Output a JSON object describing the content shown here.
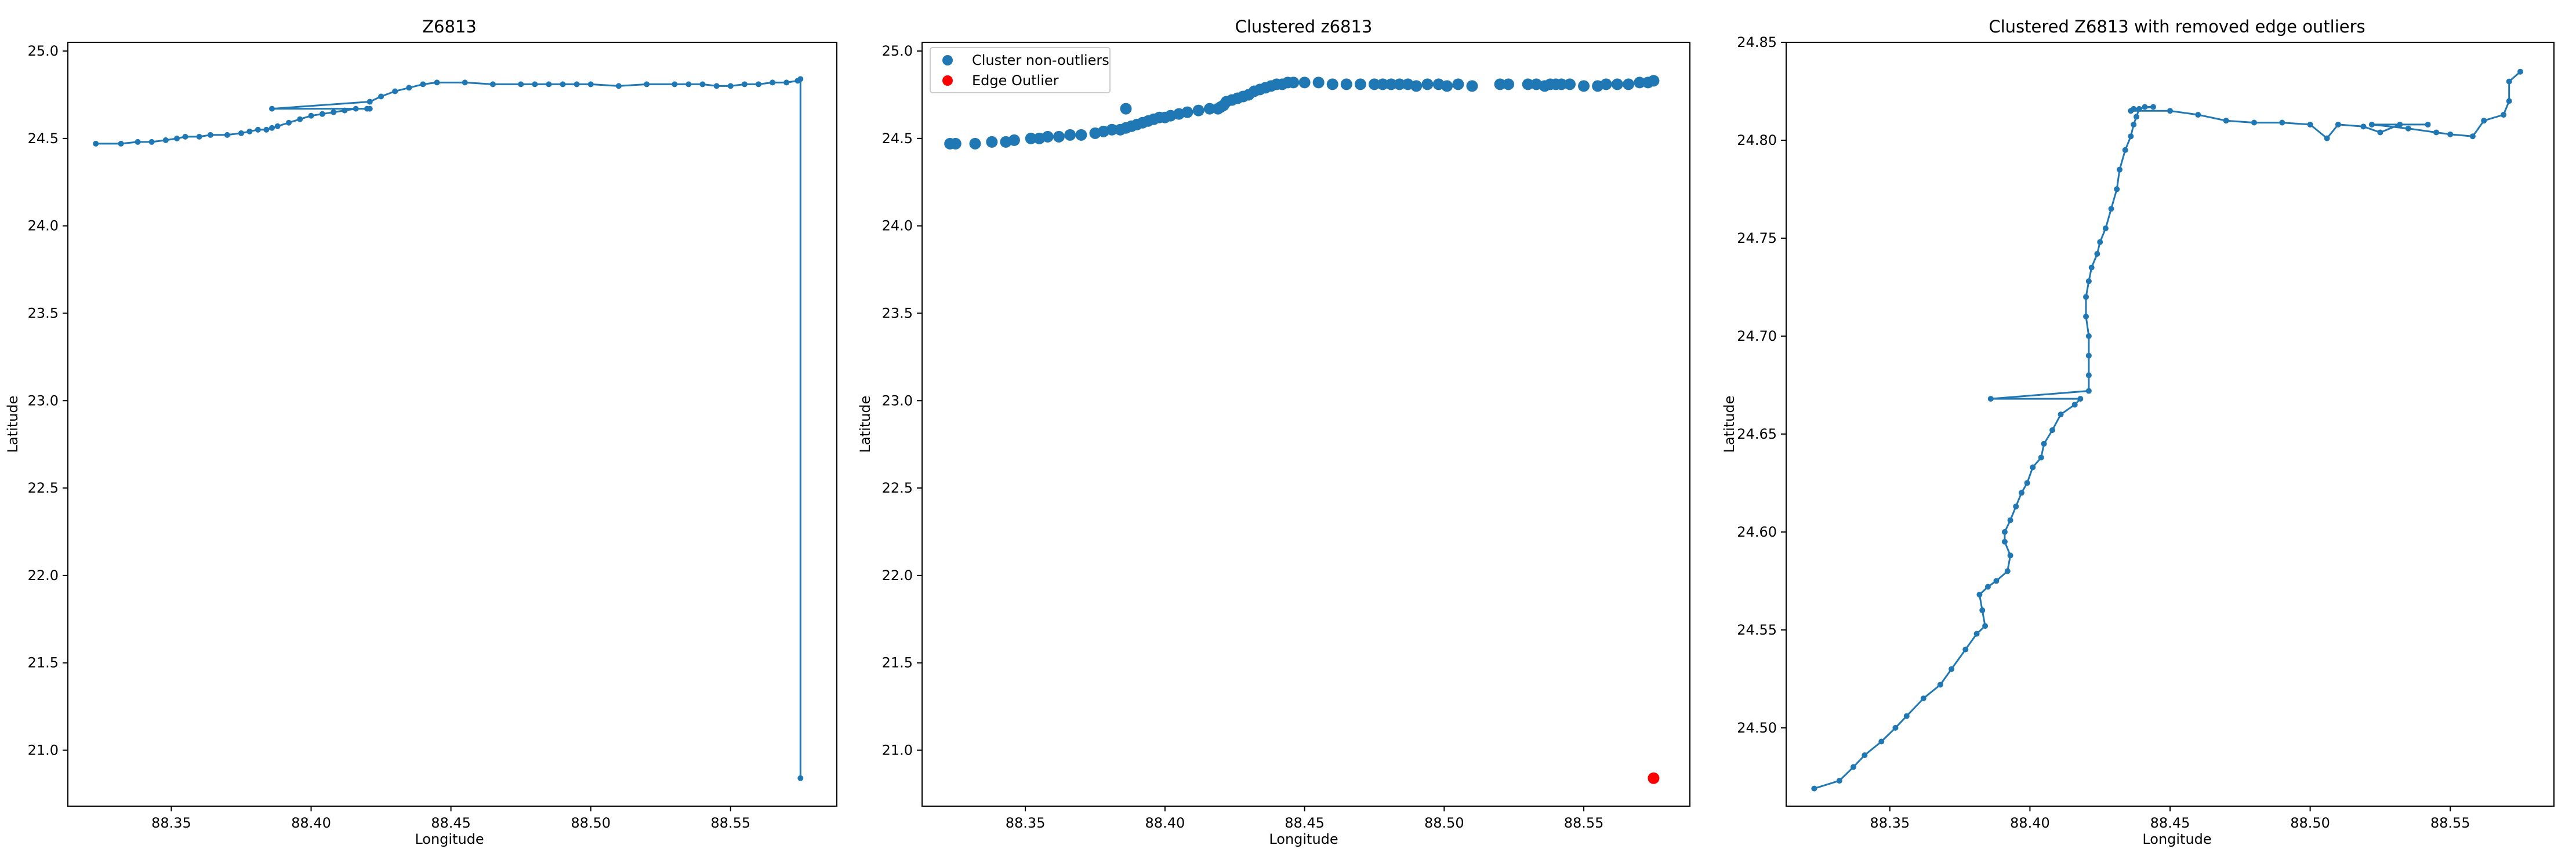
{
  "colors": {
    "series": "#1f77b4",
    "outlier": "#ff0000",
    "axis": "#000000",
    "legend_border": "#cccccc",
    "background": "#ffffff"
  },
  "chart_data": [
    {
      "type": "line",
      "title": "Z6813",
      "xlabel": "Longitude",
      "ylabel": "Latitude",
      "xlim": [
        88.313,
        88.588
      ],
      "ylim": [
        20.68,
        25.05
      ],
      "xticks": [
        "88.35",
        "88.40",
        "88.45",
        "88.50",
        "88.55"
      ],
      "yticks": [
        "21.0",
        "21.5",
        "22.0",
        "22.5",
        "23.0",
        "23.5",
        "24.0",
        "24.5",
        "25.0"
      ],
      "grid": false,
      "marker": "dot",
      "series": [
        {
          "x": [
            88.323,
            88.332,
            88.338,
            88.343,
            88.348,
            88.352,
            88.355,
            88.36,
            88.364,
            88.37,
            88.375,
            88.378,
            88.381,
            88.384,
            88.386,
            88.388,
            88.392,
            88.396,
            88.4,
            88.404,
            88.408,
            88.412,
            88.416,
            88.42,
            88.421,
            88.386,
            88.421,
            88.425,
            88.43,
            88.435,
            88.44,
            88.445,
            88.455,
            88.465,
            88.475,
            88.48,
            88.485,
            88.49,
            88.495,
            88.5,
            88.51,
            88.52,
            88.53,
            88.535,
            88.54,
            88.545,
            88.55,
            88.555,
            88.56,
            88.565,
            88.57,
            88.574,
            88.575,
            88.575
          ],
          "y": [
            24.47,
            24.47,
            24.48,
            24.48,
            24.49,
            24.5,
            24.51,
            24.51,
            24.52,
            24.52,
            24.53,
            24.54,
            24.55,
            24.55,
            24.56,
            24.57,
            24.59,
            24.61,
            24.63,
            24.64,
            24.65,
            24.66,
            24.67,
            24.67,
            24.67,
            24.67,
            24.71,
            24.74,
            24.77,
            24.79,
            24.81,
            24.82,
            24.82,
            24.81,
            24.81,
            24.81,
            24.81,
            24.81,
            24.81,
            24.81,
            24.8,
            24.81,
            24.81,
            24.81,
            24.81,
            24.8,
            24.8,
            24.81,
            24.81,
            24.82,
            24.82,
            24.83,
            24.84,
            20.84
          ]
        }
      ]
    },
    {
      "type": "scatter",
      "title": "Clustered z6813",
      "xlabel": "Longitude",
      "ylabel": "Latitude",
      "xlim": [
        88.313,
        88.588
      ],
      "ylim": [
        20.68,
        25.05
      ],
      "xticks": [
        "88.35",
        "88.40",
        "88.45",
        "88.50",
        "88.55"
      ],
      "yticks": [
        "21.0",
        "21.5",
        "22.0",
        "22.5",
        "23.0",
        "23.5",
        "24.0",
        "24.5",
        "25.0"
      ],
      "grid": false,
      "legend_position": "top-left",
      "series": [
        {
          "name": "Cluster non-outliers",
          "color": "#1f77b4",
          "x": [
            88.323,
            88.325,
            88.332,
            88.338,
            88.343,
            88.346,
            88.352,
            88.355,
            88.358,
            88.362,
            88.366,
            88.37,
            88.375,
            88.378,
            88.381,
            88.384,
            88.386,
            88.388,
            88.39,
            88.392,
            88.394,
            88.396,
            88.398,
            88.4,
            88.402,
            88.405,
            88.408,
            88.412,
            88.416,
            88.419,
            88.42,
            88.421,
            88.386,
            88.422,
            88.424,
            88.426,
            88.428,
            88.43,
            88.432,
            88.434,
            88.436,
            88.438,
            88.44,
            88.442,
            88.444,
            88.446,
            88.45,
            88.455,
            88.46,
            88.465,
            88.47,
            88.475,
            88.478,
            88.481,
            88.484,
            88.487,
            88.49,
            88.494,
            88.498,
            88.501,
            88.505,
            88.51,
            88.52,
            88.523,
            88.53,
            88.533,
            88.536,
            88.538,
            88.54,
            88.542,
            88.545,
            88.55,
            88.555,
            88.558,
            88.562,
            88.566,
            88.57,
            88.573,
            88.575
          ],
          "y": [
            24.47,
            24.47,
            24.47,
            24.48,
            24.48,
            24.49,
            24.5,
            24.5,
            24.51,
            24.51,
            24.52,
            24.52,
            24.53,
            24.54,
            24.55,
            24.55,
            24.56,
            24.57,
            24.58,
            24.59,
            24.6,
            24.61,
            24.62,
            24.62,
            24.63,
            24.64,
            24.65,
            24.66,
            24.67,
            24.67,
            24.68,
            24.69,
            24.67,
            24.71,
            24.72,
            24.73,
            24.74,
            24.75,
            24.77,
            24.78,
            24.79,
            24.8,
            24.81,
            24.81,
            24.82,
            24.82,
            24.82,
            24.82,
            24.81,
            24.81,
            24.81,
            24.81,
            24.81,
            24.81,
            24.81,
            24.81,
            24.8,
            24.81,
            24.81,
            24.8,
            24.81,
            24.8,
            24.81,
            24.81,
            24.81,
            24.81,
            24.8,
            24.81,
            24.81,
            24.81,
            24.81,
            24.8,
            24.8,
            24.81,
            24.81,
            24.81,
            24.82,
            24.82,
            24.83
          ]
        },
        {
          "name": "Edge Outlier",
          "color": "#ff0000",
          "x": [
            88.575
          ],
          "y": [
            20.84
          ]
        }
      ]
    },
    {
      "type": "line",
      "title": "Clustered Z6813 with removed edge outliers",
      "xlabel": "Longitude",
      "ylabel": "Latitude",
      "xlim": [
        88.313,
        88.587
      ],
      "ylim": [
        24.46,
        24.85
      ],
      "xticks": [
        "88.35",
        "88.40",
        "88.45",
        "88.50",
        "88.55"
      ],
      "yticks": [
        "24.50",
        "24.55",
        "24.60",
        "24.65",
        "24.70",
        "24.75",
        "24.80",
        "24.85"
      ],
      "grid": false,
      "marker": "dot",
      "series": [
        {
          "x": [
            88.323,
            88.332,
            88.337,
            88.341,
            88.347,
            88.352,
            88.356,
            88.362,
            88.368,
            88.372,
            88.377,
            88.381,
            88.384,
            88.383,
            88.382,
            88.385,
            88.388,
            88.392,
            88.393,
            88.391,
            88.391,
            88.393,
            88.395,
            88.397,
            88.399,
            88.401,
            88.404,
            88.405,
            88.408,
            88.411,
            88.416,
            88.418,
            88.386,
            88.421,
            88.421,
            88.421,
            88.421,
            88.42,
            88.42,
            88.421,
            88.422,
            88.424,
            88.425,
            88.427,
            88.429,
            88.431,
            88.432,
            88.434,
            88.436,
            88.437,
            88.438,
            88.439,
            88.441,
            88.444,
            88.437,
            88.436,
            88.45,
            88.46,
            88.47,
            88.48,
            88.49,
            88.5,
            88.506,
            88.51,
            88.519,
            88.525,
            88.532,
            88.542,
            88.522,
            88.535,
            88.545,
            88.55,
            88.558,
            88.562,
            88.569,
            88.571,
            88.571,
            88.575
          ],
          "y": [
            24.469,
            24.473,
            24.48,
            24.486,
            24.493,
            24.5,
            24.506,
            24.515,
            24.522,
            24.53,
            24.54,
            24.548,
            24.552,
            24.56,
            24.568,
            24.572,
            24.575,
            24.58,
            24.588,
            24.595,
            24.6,
            24.606,
            24.613,
            24.62,
            24.625,
            24.633,
            24.638,
            24.645,
            24.652,
            24.66,
            24.665,
            24.668,
            24.668,
            24.672,
            24.68,
            24.69,
            24.7,
            24.71,
            24.72,
            24.728,
            24.735,
            24.742,
            24.748,
            24.755,
            24.765,
            24.775,
            24.785,
            24.795,
            24.802,
            24.808,
            24.812,
            24.816,
            24.817,
            24.817,
            24.816,
            24.815,
            24.815,
            24.813,
            24.81,
            24.809,
            24.809,
            24.808,
            24.801,
            24.808,
            24.807,
            24.804,
            24.808,
            24.808,
            24.808,
            24.806,
            24.804,
            24.803,
            24.802,
            24.81,
            24.813,
            24.82,
            24.83,
            24.835
          ]
        }
      ]
    }
  ]
}
